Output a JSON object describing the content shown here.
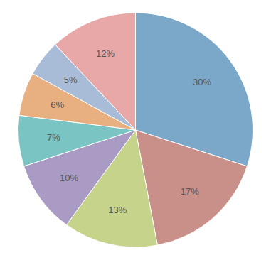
{
  "chart_data": {
    "type": "pie",
    "values": [
      30,
      17,
      13,
      10,
      7,
      6,
      5,
      12
    ],
    "value_labels": [
      "30%",
      "17%",
      "13%",
      "10%",
      "7%",
      "6%",
      "5%",
      "12%"
    ],
    "colors": [
      "#7BA7C9",
      "#C9908A",
      "#C5D48A",
      "#A99BC4",
      "#7BC4C4",
      "#E8B080",
      "#A8BCD8",
      "#E8A8A8"
    ],
    "data_labels": true
  }
}
